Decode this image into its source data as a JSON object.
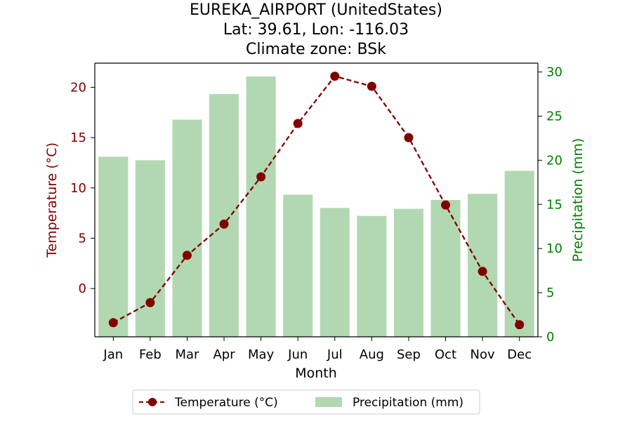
{
  "chart_data": {
    "type": "bar+line",
    "title_lines": [
      "EUREKA_AIRPORT (UnitedStates)",
      "Lat: 39.61, Lon: -116.03",
      "Climate zone: BSk"
    ],
    "xlabel": "Month",
    "categories": [
      "Jan",
      "Feb",
      "Mar",
      "Apr",
      "May",
      "Jun",
      "Jul",
      "Aug",
      "Sep",
      "Oct",
      "Nov",
      "Dec"
    ],
    "temperature": {
      "name": "Temperature (°C)",
      "axis_label": "Temperature (°C)",
      "color": "#800000",
      "values": [
        -3.4,
        -1.4,
        3.3,
        6.4,
        11.1,
        16.4,
        21.1,
        20.1,
        15.0,
        8.3,
        1.7,
        -3.6
      ],
      "ylim": [
        -4.8,
        22.4
      ],
      "ticks": [
        0,
        5,
        10,
        15,
        20
      ]
    },
    "precipitation": {
      "name": "Precipitation (mm)",
      "axis_label": "Precipitation (mm)",
      "color": "#008000",
      "bar_color": "#b2d8b2",
      "values": [
        20.4,
        20.0,
        24.6,
        27.5,
        29.5,
        16.1,
        14.6,
        13.7,
        14.5,
        15.5,
        16.2,
        18.8
      ],
      "ylim": [
        0,
        31
      ],
      "ticks": [
        0,
        5,
        10,
        15,
        20,
        25,
        30
      ]
    },
    "legend_position": "bottom-center"
  }
}
